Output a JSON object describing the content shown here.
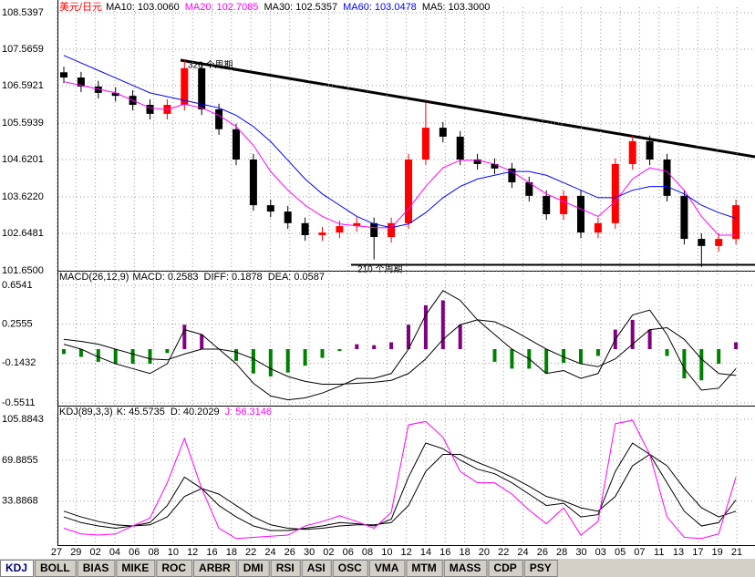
{
  "chart_data": [
    {
      "type": "candlestick",
      "title": "美元/日元",
      "title_color": "#ff0000",
      "indicators": [
        {
          "name": "MA10:",
          "value": 103.006,
          "value_label": "103.0060",
          "color": "#000000"
        },
        {
          "name": "MA20:",
          "value": 102.7085,
          "color": "#ff00ff",
          "style": "line",
          "values": [
            106.7,
            106.6,
            106.5,
            106.4,
            106.2,
            106.0,
            105.95,
            106.1,
            106.0,
            105.8,
            105.5,
            105.0,
            104.3,
            103.8,
            103.4,
            103.1,
            102.9,
            102.85,
            102.8,
            102.8,
            103.3,
            103.9,
            104.4,
            104.6,
            104.6,
            104.5,
            104.3,
            104.0,
            103.7,
            103.5,
            103.3,
            103.1,
            103.5,
            104.1,
            104.4,
            104.3,
            103.8,
            103.1,
            102.6,
            102.6
          ]
        },
        {
          "name": "MA30:",
          "value": 102.5357,
          "color": "#000000"
        },
        {
          "name": "MA60:",
          "value": 103.0478,
          "color": "#0000ff",
          "style": "line",
          "values": [
            107.4,
            107.2,
            107.0,
            106.8,
            106.6,
            106.4,
            106.3,
            106.2,
            106.1,
            106.0,
            105.8,
            105.5,
            105.1,
            104.6,
            104.1,
            103.7,
            103.4,
            103.1,
            102.9,
            102.8,
            102.9,
            103.2,
            103.6,
            103.9,
            104.1,
            104.2,
            104.3,
            104.3,
            104.2,
            104.0,
            103.8,
            103.6,
            103.6,
            103.8,
            103.9,
            103.9,
            103.7,
            103.4,
            103.2,
            103.05
          ]
        },
        {
          "name": "MA5:",
          "value": 103.3,
          "value_label": "103.3000",
          "color": "#000000"
        }
      ],
      "open": [
        106.95,
        106.81,
        106.57,
        106.4,
        106.32,
        106.08,
        105.84,
        106.08,
        107.06,
        105.96,
        105.43,
        104.62,
        103.4,
        103.23,
        102.92,
        102.6,
        102.67,
        102.84,
        102.92,
        102.55,
        102.92,
        104.62,
        105.47,
        105.23,
        104.62,
        104.5,
        104.38,
        104.01,
        103.65,
        103.16,
        103.65,
        102.67,
        102.92,
        104.5,
        105.11,
        104.62,
        103.65,
        102.5,
        102.31,
        102.5
      ],
      "high": [
        107.1,
        106.96,
        106.72,
        106.55,
        106.47,
        106.23,
        106.23,
        107.27,
        107.21,
        106.11,
        105.58,
        104.77,
        103.55,
        103.38,
        103.07,
        102.82,
        102.99,
        103.07,
        103.07,
        103.07,
        104.77,
        106.15,
        105.62,
        105.38,
        104.77,
        104.65,
        104.53,
        104.16,
        103.8,
        103.8,
        103.8,
        103.07,
        104.65,
        105.26,
        105.26,
        104.77,
        103.8,
        102.65,
        102.65,
        103.55
      ],
      "low": [
        106.66,
        106.42,
        106.25,
        106.17,
        105.93,
        105.69,
        105.69,
        105.93,
        105.81,
        105.28,
        104.47,
        103.25,
        103.08,
        102.77,
        102.45,
        102.45,
        102.52,
        102.69,
        101.95,
        102.4,
        102.77,
        104.47,
        105.08,
        104.47,
        104.35,
        104.23,
        103.86,
        103.5,
        103.01,
        103.01,
        102.52,
        102.52,
        102.77,
        104.35,
        104.47,
        103.5,
        102.35,
        101.75,
        102.16,
        102.35
      ],
      "close": [
        106.81,
        106.57,
        106.4,
        106.32,
        106.08,
        105.84,
        106.08,
        107.06,
        105.96,
        105.43,
        104.62,
        103.4,
        103.23,
        102.92,
        102.6,
        102.67,
        102.84,
        102.92,
        102.55,
        102.92,
        104.62,
        105.47,
        105.23,
        104.62,
        104.5,
        104.38,
        104.01,
        103.65,
        103.16,
        103.65,
        102.67,
        102.92,
        104.5,
        105.11,
        104.62,
        103.65,
        102.5,
        102.31,
        102.5,
        103.4
      ],
      "up_color": "#ff0000",
      "down_color": "#000000",
      "ylim": [
        101.65,
        108.5397
      ],
      "yticks": [
        108.5397,
        107.5659,
        106.5921,
        105.5939,
        104.6201,
        {
          "value": 103.622,
          "label": "103.6220"
        },
        102.6481,
        {
          "value": 101.65,
          "label": "101.6500"
        }
      ],
      "annotations": [
        "326 个周期",
        "210 个周期"
      ],
      "grid": true
    },
    {
      "type": "macd",
      "title": "MACD(26,12,9)",
      "title_color": "#000000",
      "indicators": [
        {
          "name": "MACD:",
          "value": 0.2583,
          "color": "#000000",
          "style": "bar",
          "pos_color": "#800080",
          "neg_color": "#008000",
          "values": [
            -0.05,
            -0.08,
            -0.13,
            -0.15,
            -0.15,
            -0.15,
            -0.04,
            0.25,
            0.15,
            0.0,
            -0.12,
            -0.25,
            -0.28,
            -0.24,
            -0.17,
            -0.09,
            -0.02,
            0.05,
            0.04,
            0.07,
            0.25,
            0.45,
            0.5,
            0.25,
            0.0,
            -0.13,
            -0.2,
            -0.2,
            -0.25,
            -0.14,
            -0.15,
            -0.07,
            0.2,
            0.3,
            0.2,
            -0.07,
            -0.3,
            -0.32,
            -0.15,
            0.07
          ]
        },
        {
          "name": "DIFF:",
          "value": 0.1878,
          "color": "#000000",
          "style": "line",
          "values": [
            0.05,
            0.0,
            -0.08,
            -0.15,
            -0.2,
            -0.25,
            -0.15,
            0.2,
            0.15,
            0.0,
            -0.15,
            -0.35,
            -0.48,
            -0.52,
            -0.5,
            -0.45,
            -0.38,
            -0.3,
            -0.3,
            -0.25,
            0.0,
            0.35,
            0.6,
            0.5,
            0.3,
            0.15,
            0.0,
            -0.1,
            -0.25,
            -0.22,
            -0.3,
            -0.25,
            0.1,
            0.35,
            0.4,
            0.15,
            -0.2,
            -0.42,
            -0.4,
            -0.2
          ]
        },
        {
          "name": "DEA:",
          "value": 0.0587,
          "color": "#000000",
          "style": "line",
          "values": [
            0.1,
            0.08,
            0.05,
            0.0,
            -0.05,
            -0.1,
            -0.11,
            -0.05,
            0.0,
            0.0,
            -0.03,
            -0.1,
            -0.2,
            -0.28,
            -0.33,
            -0.36,
            -0.36,
            -0.35,
            -0.34,
            -0.32,
            -0.25,
            -0.1,
            0.1,
            0.25,
            0.3,
            0.28,
            0.2,
            0.1,
            0.0,
            -0.08,
            -0.15,
            -0.18,
            -0.1,
            0.05,
            0.2,
            0.22,
            0.1,
            -0.1,
            -0.25,
            -0.27
          ]
        }
      ],
      "ylim": [
        -0.5511,
        0.6541
      ],
      "yticks": [
        0.6541,
        0.2555,
        -0.1432,
        -0.5511
      ],
      "grid": true
    },
    {
      "type": "kdj",
      "title": "KDJ(89,3,3)",
      "title_color": "#000000",
      "indicators": [
        {
          "name": "K:",
          "value": 45.5735,
          "color": "#000000",
          "style": "line",
          "values": [
            20,
            15,
            12,
            10,
            12,
            15,
            30,
            55,
            45,
            30,
            20,
            12,
            8,
            8,
            10,
            12,
            15,
            14,
            12,
            18,
            55,
            85,
            80,
            70,
            62,
            58,
            50,
            40,
            30,
            32,
            20,
            22,
            60,
            85,
            75,
            50,
            25,
            12,
            15,
            35
          ]
        },
        {
          "name": "D:",
          "value": 40.2029,
          "color": "#000000",
          "style": "line",
          "values": [
            25,
            20,
            16,
            13,
            12,
            13,
            20,
            38,
            45,
            40,
            30,
            20,
            13,
            10,
            9,
            10,
            12,
            13,
            13,
            15,
            30,
            60,
            75,
            75,
            68,
            62,
            55,
            47,
            38,
            34,
            28,
            25,
            38,
            65,
            75,
            65,
            45,
            28,
            20,
            25
          ]
        },
        {
          "name": "J:",
          "value": 56.3146,
          "color": "#ff00ff",
          "style": "line",
          "values": [
            10,
            5,
            4,
            5,
            12,
            19,
            50,
            89,
            45,
            10,
            1,
            2,
            3,
            4,
            12,
            16,
            21,
            16,
            10,
            24,
            101,
            104,
            90,
            60,
            50,
            50,
            40,
            26,
            14,
            28,
            4,
            16,
            102,
            105,
            75,
            20,
            2,
            1,
            5,
            55
          ]
        }
      ],
      "ylim": [
        0,
        105.8843
      ],
      "yticks": [
        105.8843,
        69.8855,
        33.8868
      ],
      "grid": true
    }
  ],
  "x_axis_labels": [
    "27",
    "29",
    "02",
    "04",
    "06",
    "08",
    "10",
    "12",
    "16",
    "18",
    "22",
    "24",
    "26",
    "30",
    "02",
    "06",
    "08",
    "10",
    "12",
    "14",
    "16",
    "18",
    "20",
    "22",
    "24",
    "26",
    "28",
    "30",
    "03",
    "05",
    "07",
    "11",
    "13",
    "17",
    "19",
    "21"
  ],
  "tabs": [
    "KDJ",
    "BOLL",
    "BIAS",
    "MIKE",
    "ROC",
    "ARBR",
    "DMI",
    "RSI",
    "ASI",
    "OSC",
    "VMA",
    "MTM",
    "MASS",
    "CDP",
    "PSY"
  ],
  "active_tab": 0
}
